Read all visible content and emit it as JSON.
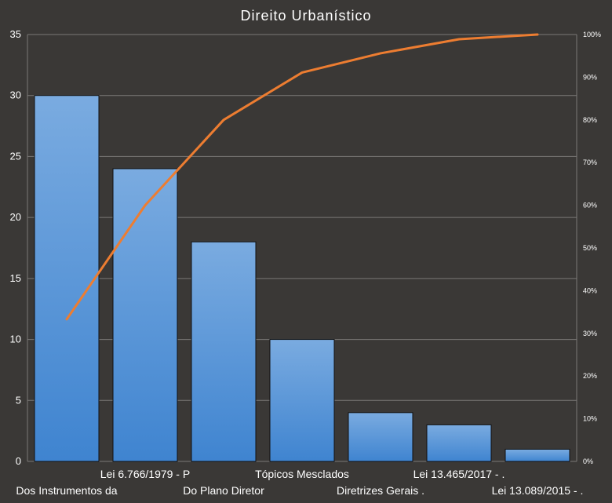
{
  "chart_data": {
    "type": "bar",
    "title": "Direito Urbanístico",
    "categories": [
      "Dos Instrumentos  da",
      "Lei 6.766/1979 - P",
      "Do Plano Diretor",
      "Tópicos Mesclados",
      "Diretrizes Gerais .",
      "Lei 13.465/2017 -  .",
      "Lei 13.089/2015 - ."
    ],
    "series": [
      {
        "type": "bar",
        "values": [
          30,
          24,
          18,
          10,
          4,
          3,
          1
        ],
        "color": "#4a90d9"
      },
      {
        "type": "line",
        "axis": "right",
        "values": [
          33.3,
          60.0,
          80.0,
          91.1,
          95.6,
          98.9,
          100.0
        ],
        "color": "#ed7d31"
      }
    ],
    "y_left": {
      "range": [
        0,
        35
      ],
      "ticks": [
        "0",
        "5",
        "10",
        "15",
        "20",
        "25",
        "30",
        "35"
      ]
    },
    "y_right": {
      "range": [
        0,
        100
      ],
      "ticks": [
        "0%",
        "10%",
        "20%",
        "30%",
        "40%",
        "50%",
        "60%",
        "70%",
        "80%",
        "90%",
        "100%"
      ]
    },
    "grid": true,
    "legend": "none",
    "colors": {
      "background": "#3a3836",
      "bar": "#4a90d9",
      "line": "#ed7d31",
      "text": "#ffffff",
      "grid": "#7a7876"
    }
  }
}
